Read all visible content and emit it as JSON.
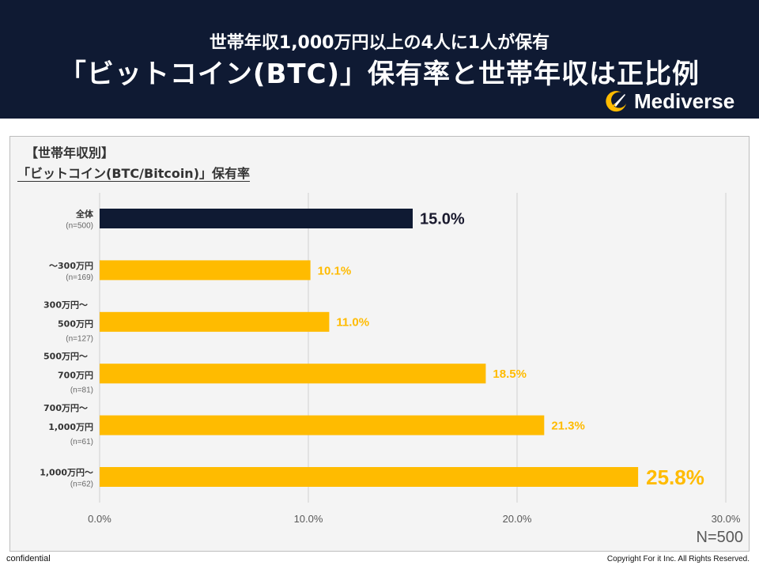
{
  "header": {
    "subtitle": "世帯年収1,000万円以上の4人に1人が保有",
    "title": "「ビットコイン(BTC)」保有率と世帯年収は正比例",
    "brand": "Mediverse"
  },
  "colors": {
    "navy": "#0f1a33",
    "accent": "#ffbb00",
    "highlight_bar": "#0f1a33"
  },
  "chart_data": {
    "type": "bar",
    "orientation": "horizontal",
    "title_line1": "【世帯年収別】",
    "title_line2": "「ビットコイン(BTC/Bitcoin)」保有率",
    "categories": [
      {
        "lines": [
          "全体"
        ],
        "n": "(n=500)"
      },
      {
        "lines": [
          "～300万円"
        ],
        "n": "(n=169)"
      },
      {
        "lines": [
          "300万円～",
          "500万円"
        ],
        "n": "(n=127)"
      },
      {
        "lines": [
          "500万円～",
          "700万円"
        ],
        "n": "(n=81)"
      },
      {
        "lines": [
          "700万円～",
          "1,000万円"
        ],
        "n": "(n=61)"
      },
      {
        "lines": [
          "1,000万円～"
        ],
        "n": "(n=62)"
      }
    ],
    "values": [
      15.0,
      10.1,
      11.0,
      18.5,
      21.3,
      25.8
    ],
    "value_labels": [
      "15.0%",
      "10.1%",
      "11.0%",
      "18.5%",
      "21.3%",
      "25.8%"
    ],
    "xlim": [
      0,
      30
    ],
    "xticks": [
      "0.0%",
      "10.0%",
      "20.0%",
      "30.0%"
    ],
    "xtick_values": [
      0,
      10,
      20,
      30
    ],
    "grid": true,
    "xlabel": "",
    "ylabel": ""
  },
  "footer": {
    "n_total": "N=500",
    "confidential": "confidential",
    "copyright": "Copyright For it Inc. All Rights Reserved."
  }
}
